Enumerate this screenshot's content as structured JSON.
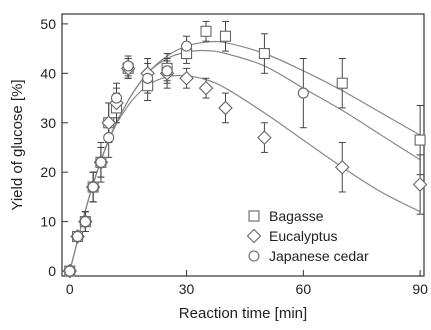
{
  "chart_data": {
    "type": "scatter",
    "title": "",
    "xlabel": "Reaction time [min]",
    "ylabel": "Yield of glucose [%]",
    "xlim": [
      -2,
      91
    ],
    "ylim": [
      -1,
      52
    ],
    "xticks": [
      0,
      30,
      60,
      90
    ],
    "yticks": [
      0,
      10,
      20,
      30,
      40,
      50
    ],
    "grid": false,
    "legend_position": "bottom-right",
    "series": [
      {
        "name": "Bagasse",
        "marker": "square",
        "x": [
          0,
          2,
          4,
          6,
          8,
          10,
          12,
          15,
          20,
          25,
          30,
          35,
          40,
          50,
          70,
          90
        ],
        "y": [
          0,
          7,
          10,
          17,
          22,
          30,
          33,
          41,
          37.5,
          41,
          44,
          48.5,
          47.5,
          44,
          38,
          26.5
        ],
        "err": [
          0,
          1,
          2,
          3,
          3,
          4,
          3,
          2,
          3,
          3,
          2,
          2,
          3,
          4,
          5,
          7
        ],
        "fit": [
          [
            0,
            0
          ],
          [
            5,
            15
          ],
          [
            10,
            26.5
          ],
          [
            15,
            34.5
          ],
          [
            20,
            40
          ],
          [
            25,
            43.5
          ],
          [
            30,
            45.5
          ],
          [
            35,
            46.3
          ],
          [
            40,
            46.2
          ],
          [
            50,
            44
          ],
          [
            60,
            40.5
          ],
          [
            70,
            36.5
          ],
          [
            80,
            32
          ],
          [
            90,
            27.5
          ]
        ]
      },
      {
        "name": "Eucalyptus",
        "marker": "diamond",
        "x": [
          0,
          2,
          4,
          6,
          8,
          10,
          12,
          15,
          20,
          25,
          30,
          35,
          40,
          50,
          70,
          90
        ],
        "y": [
          0,
          7,
          10,
          17,
          22,
          30,
          34,
          41,
          40,
          40,
          39,
          37,
          33,
          27,
          21,
          17.5
        ],
        "err": [
          0,
          1,
          2,
          3,
          3,
          4,
          3,
          2,
          3,
          3,
          2,
          2,
          3,
          3,
          5,
          6
        ],
        "fit": [
          [
            0,
            0
          ],
          [
            5,
            15
          ],
          [
            10,
            26.5
          ],
          [
            15,
            33.5
          ],
          [
            20,
            37.5
          ],
          [
            25,
            39.3
          ],
          [
            30,
            39.5
          ],
          [
            35,
            38.7
          ],
          [
            40,
            37
          ],
          [
            50,
            32
          ],
          [
            60,
            26.5
          ],
          [
            70,
            21
          ],
          [
            80,
            16
          ],
          [
            90,
            12
          ]
        ]
      },
      {
        "name": "Japanese cedar",
        "marker": "circle",
        "x": [
          0,
          2,
          4,
          6,
          8,
          10,
          12,
          15,
          20,
          25,
          30,
          60
        ],
        "y": [
          0,
          7,
          10,
          17,
          22,
          27,
          35,
          41.5,
          39,
          40.5,
          45.5,
          36
        ],
        "err": [
          0,
          1,
          2,
          3,
          4,
          4,
          3,
          2,
          3,
          2,
          2,
          7
        ],
        "fit": [
          [
            0,
            0
          ],
          [
            5,
            15
          ],
          [
            10,
            26.5
          ],
          [
            15,
            34.5
          ],
          [
            20,
            40
          ],
          [
            25,
            43
          ],
          [
            30,
            44.3
          ],
          [
            35,
            44.6
          ],
          [
            40,
            44
          ],
          [
            50,
            41.5
          ],
          [
            60,
            37
          ],
          [
            70,
            32.5
          ],
          [
            80,
            27.5
          ],
          [
            90,
            22.5
          ]
        ]
      }
    ]
  }
}
